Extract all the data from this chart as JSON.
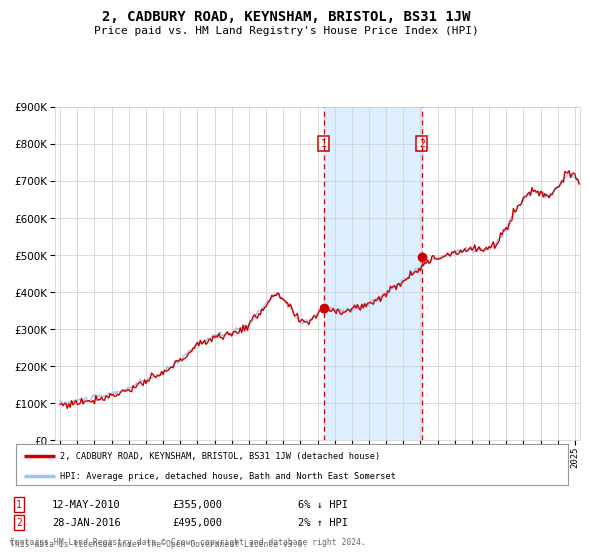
{
  "title": "2, CADBURY ROAD, KEYNSHAM, BRISTOL, BS31 1JW",
  "subtitle": "Price paid vs. HM Land Registry's House Price Index (HPI)",
  "legend_line1": "2, CADBURY ROAD, KEYNSHAM, BRISTOL, BS31 1JW (detached house)",
  "legend_line2": "HPI: Average price, detached house, Bath and North East Somerset",
  "transaction1": {
    "label": "1",
    "date": "12-MAY-2010",
    "price": 355000,
    "pct": "6%",
    "direction": "↓",
    "date_num": 2010.36
  },
  "transaction2": {
    "label": "2",
    "date": "28-JAN-2016",
    "price": 495000,
    "pct": "2%",
    "direction": "↑",
    "date_num": 2016.08
  },
  "footnote1": "Contains HM Land Registry data © Crown copyright and database right 2024.",
  "footnote2": "This data is licensed under the Open Government Licence v3.0.",
  "hpi_color": "#a0c4e8",
  "price_color": "#cc0000",
  "highlight_color": "#ddeeff",
  "vline_color": "#cc0000",
  "ylim": [
    0,
    900000
  ],
  "yticks": [
    0,
    100000,
    200000,
    300000,
    400000,
    500000,
    600000,
    700000,
    800000,
    900000
  ],
  "xlim_start": 1994.7,
  "xlim_end": 2025.3,
  "background_color": "#ffffff",
  "grid_color": "#cccccc"
}
